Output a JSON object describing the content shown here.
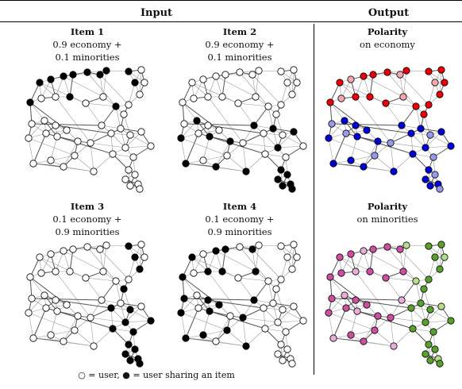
{
  "header": {
    "input": "Input",
    "output": "Output"
  },
  "panels": [
    {
      "title": "Item 1",
      "lines": [
        "0.9 economy +",
        "0.1 minorities"
      ],
      "scheme": "item1"
    },
    {
      "title": "Item 2",
      "lines": [
        "0.9 economy +",
        "0.1 minorities"
      ],
      "scheme": "item2"
    },
    {
      "title": "Polarity",
      "lines": [
        "on economy"
      ],
      "scheme": "economy"
    },
    {
      "title": "Item 3",
      "lines": [
        "0.1 economy +",
        "0.9 minorities"
      ],
      "scheme": "item3"
    },
    {
      "title": "Item 4",
      "lines": [
        "0.1 economy +",
        "0.9 minorities"
      ],
      "scheme": "item4"
    },
    {
      "title": "Polarity",
      "lines": [
        "on minorities"
      ],
      "scheme": "minorities"
    }
  ],
  "legend": "○ = user, ● = user sharing an item",
  "colors": {
    "user": "#ffffff",
    "sharing": "#000000",
    "economy_left": "#e8000b",
    "economy_left_light": "#f4a9b0",
    "economy_right": "#0000d8",
    "economy_right_light": "#9a9ae8",
    "minorities_a": "#cc4fa0",
    "minorities_a_light": "#e8aed6",
    "minorities_b": "#5aa02c",
    "minorities_b_light": "#b5dd8c"
  }
}
